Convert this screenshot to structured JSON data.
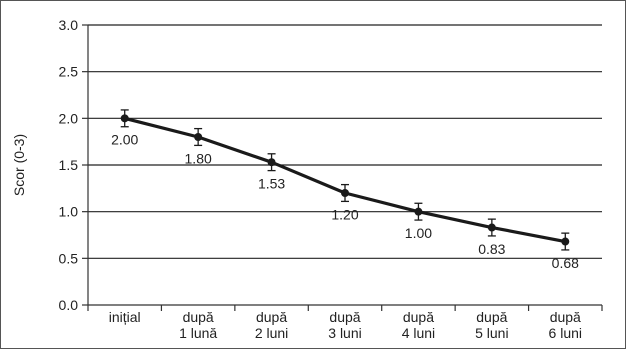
{
  "chart_data": {
    "type": "line",
    "ylabel": "Scor (0-3)",
    "xlabel": "",
    "ylim": [
      0,
      3
    ],
    "yticks": [
      "0.0",
      "0.5",
      "1.0",
      "1.5",
      "2.0",
      "2.5",
      "3.0"
    ],
    "grid": "horizontal",
    "categories": [
      [
        "inițial"
      ],
      [
        "după",
        "1 lună"
      ],
      [
        "după",
        "2 luni"
      ],
      [
        "după",
        "3 luni"
      ],
      [
        "după",
        "4 luni"
      ],
      [
        "după",
        "5 luni"
      ],
      [
        "după",
        "6 luni"
      ]
    ],
    "series": [
      {
        "values": [
          2.0,
          1.8,
          1.53,
          1.2,
          1.0,
          0.83,
          0.68
        ],
        "labels": [
          "2.00",
          "1.80",
          "1.53",
          "1.20",
          "1.00",
          "0.83",
          "0.68"
        ],
        "error": [
          0.09,
          0.09,
          0.09,
          0.09,
          0.09,
          0.09,
          0.09
        ]
      }
    ],
    "colors": {
      "line": "#1a1a1a",
      "grid": "#222222",
      "axis": "#333333"
    }
  }
}
